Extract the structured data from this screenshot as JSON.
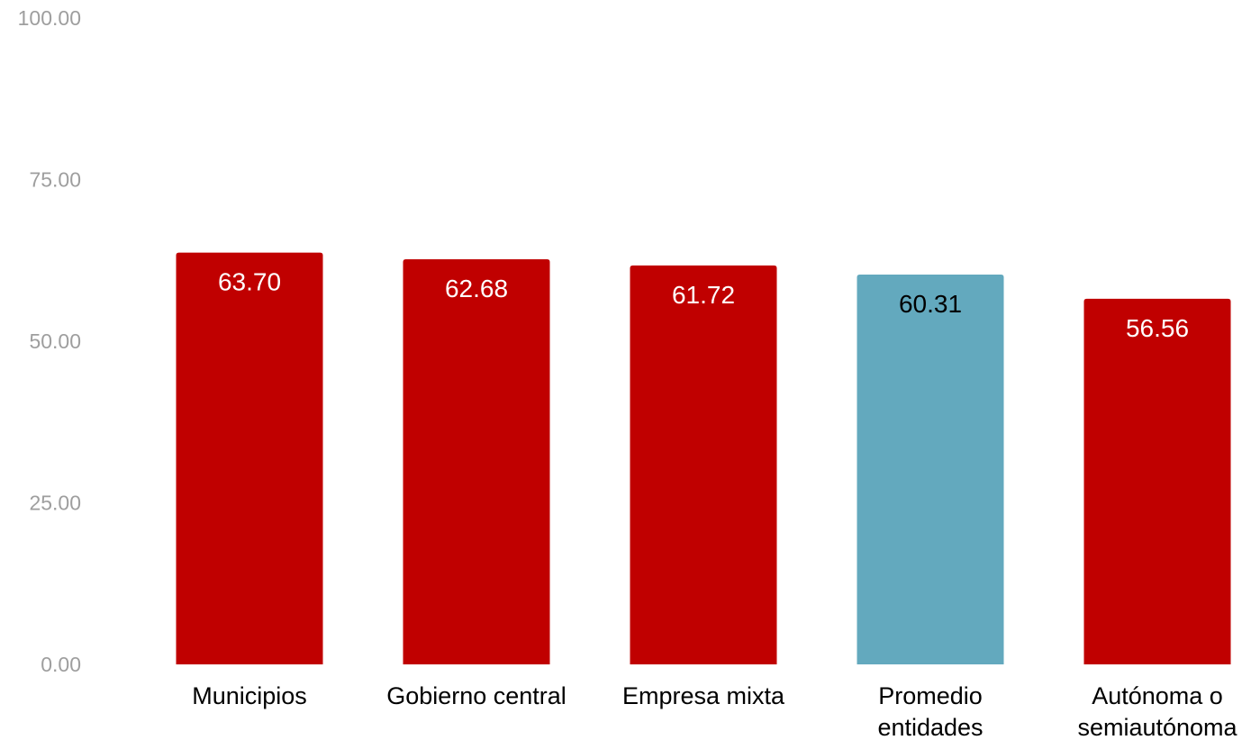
{
  "chart_data": {
    "type": "bar",
    "categories": [
      [
        "Municipios"
      ],
      [
        "Gobierno central"
      ],
      [
        "Empresa mixta"
      ],
      [
        "Promedio",
        "entidades"
      ],
      [
        "Autónoma o",
        "semiautónoma"
      ]
    ],
    "values": [
      63.7,
      62.68,
      61.72,
      60.31,
      56.56
    ],
    "value_labels": [
      "63.70",
      "62.68",
      "61.72",
      "60.31",
      "56.56"
    ],
    "bar_colors": [
      "#c00000",
      "#c00000",
      "#c00000",
      "#63a9be",
      "#c00000"
    ],
    "value_label_colors": [
      "#ffffff",
      "#ffffff",
      "#ffffff",
      "#000000",
      "#ffffff"
    ],
    "y_ticks": [
      "0.00",
      "25.00",
      "50.00",
      "75.00",
      "100.00"
    ],
    "ylim": [
      0,
      100
    ],
    "grid": false,
    "legend": "none",
    "title": "",
    "xlabel": "",
    "ylabel": ""
  }
}
